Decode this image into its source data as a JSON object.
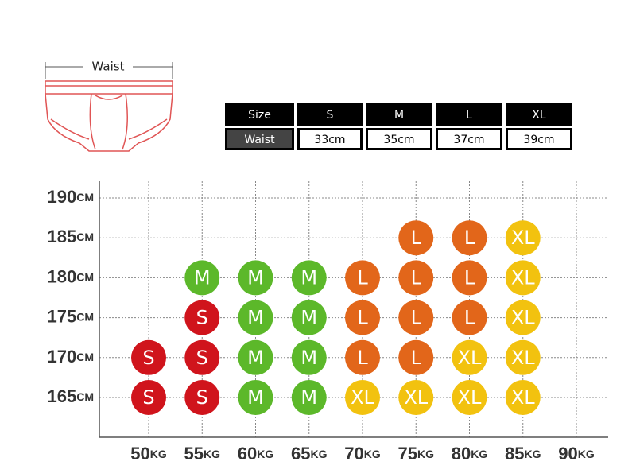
{
  "waist_label": "Waist",
  "size_table": {
    "header": [
      "Size",
      "S",
      "M",
      "L",
      "XL"
    ],
    "row": [
      "Waist",
      "33cm",
      "35cm",
      "37cm",
      "39cm"
    ]
  },
  "size_chart": {
    "heights": [
      {
        "value": "190",
        "unit": "CM"
      },
      {
        "value": "185",
        "unit": "CM"
      },
      {
        "value": "180",
        "unit": "CM"
      },
      {
        "value": "175",
        "unit": "CM"
      },
      {
        "value": "170",
        "unit": "CM"
      },
      {
        "value": "165",
        "unit": "CM"
      }
    ],
    "weights": [
      {
        "value": "50",
        "unit": "KG"
      },
      {
        "value": "55",
        "unit": "KG"
      },
      {
        "value": "60",
        "unit": "KG"
      },
      {
        "value": "65",
        "unit": "KG"
      },
      {
        "value": "70",
        "unit": "KG"
      },
      {
        "value": "75",
        "unit": "KG"
      },
      {
        "value": "80",
        "unit": "KG"
      },
      {
        "value": "85",
        "unit": "KG"
      },
      {
        "value": "90",
        "unit": "KG"
      }
    ],
    "cells": [
      [
        null,
        null,
        null,
        null,
        null,
        null,
        null,
        null,
        null
      ],
      [
        null,
        null,
        null,
        null,
        null,
        "L",
        "L",
        "XL",
        null
      ],
      [
        null,
        "M",
        "M",
        "M",
        "L",
        "L",
        "L",
        "XL",
        null
      ],
      [
        null,
        "S",
        "M",
        "M",
        "L",
        "L",
        "L",
        "XL",
        null
      ],
      [
        "S",
        "S",
        "M",
        "M",
        "L",
        "L",
        "XL",
        "XL",
        null
      ],
      [
        "S",
        "S",
        "M",
        "M",
        "XL",
        "XL",
        "XL",
        "XL",
        null
      ]
    ],
    "size_colors": {
      "S": "#d0141c",
      "M": "#5cb82a",
      "L": "#e2661a",
      "XL": "#f2c20f"
    }
  }
}
